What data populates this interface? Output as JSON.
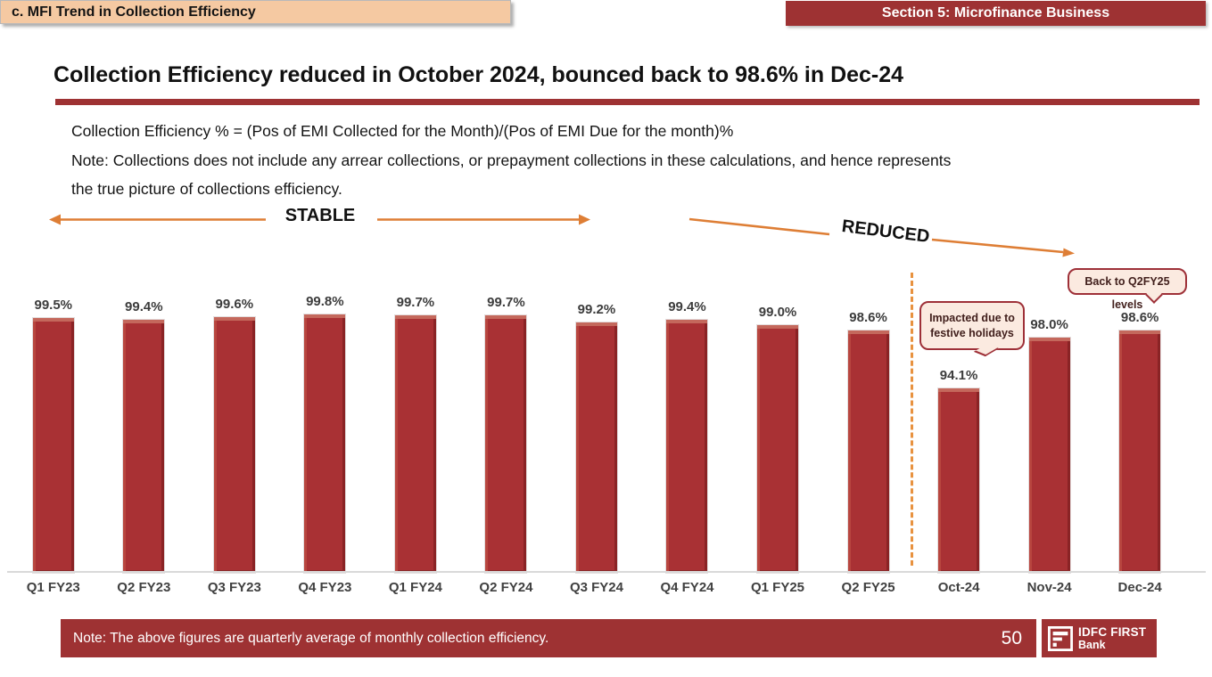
{
  "page": {
    "slide_label": "c. MFI Trend in Collection Efficiency",
    "section_label": "Section 5: Microfinance Business",
    "title": "Collection Efficiency reduced in October 2024, bounced back to 98.6% in Dec-24",
    "formula_line": "Collection Efficiency % = (Pos of EMI Collected for the Month)/(Pos of EMI Due for the month)%",
    "note_lines": [
      "Note: Collections does not include any arrear collections, or prepayment collections in these calculations, and hence represents",
      "the true picture of collections efficiency."
    ],
    "footer_note": "Note: The above figures are quarterly average of monthly collection efficiency.",
    "page_number": "50",
    "logo": {
      "line1": "IDFC FIRST",
      "line2": "Bank"
    }
  },
  "annotations": {
    "stable_label": "STABLE",
    "reduced_label": "REDUCED",
    "callout_oct": "Impacted due to festive holidays",
    "callout_dec": "Back to Q2FY25 levels"
  },
  "chart_data": {
    "type": "bar",
    "title": "MFI Trend in Collection Efficiency",
    "categories": [
      "Q1 FY23",
      "Q2 FY23",
      "Q3 FY23",
      "Q4 FY23",
      "Q1 FY24",
      "Q2 FY24",
      "Q3 FY24",
      "Q4 FY24",
      "Q1 FY25",
      "Q2 FY25",
      "Oct-24",
      "Nov-24",
      "Dec-24"
    ],
    "values": [
      99.5,
      99.4,
      99.6,
      99.8,
      99.7,
      99.7,
      99.2,
      99.4,
      99.0,
      98.6,
      94.1,
      98.0,
      98.6
    ],
    "labels": [
      "99.5%",
      "99.4%",
      "99.6%",
      "99.8%",
      "99.7%",
      "99.7%",
      "99.2%",
      "99.4%",
      "99.0%",
      "98.6%",
      "94.1%",
      "98.0%",
      "98.6%"
    ],
    "xlabel": "",
    "ylabel": "Collection Efficiency %",
    "ylim": [
      80,
      100
    ],
    "grid": false,
    "legend": "none",
    "divider_after_index": 9,
    "stable_range": [
      "Q1 FY23",
      "Q3 FY24"
    ],
    "reduced_range": [
      "Q4 FY24",
      "Dec-24"
    ]
  },
  "colors": {
    "accent_red": "#9E3233",
    "bar_red": "#A93134",
    "banner_peach": "#F5C9A2",
    "arrow_orange": "#DE7E35",
    "divider_orange": "#E8923F",
    "callout_bg": "#FBEAE0",
    "callout_border": "#9E3038",
    "axis_gray": "#D9D9D9"
  }
}
